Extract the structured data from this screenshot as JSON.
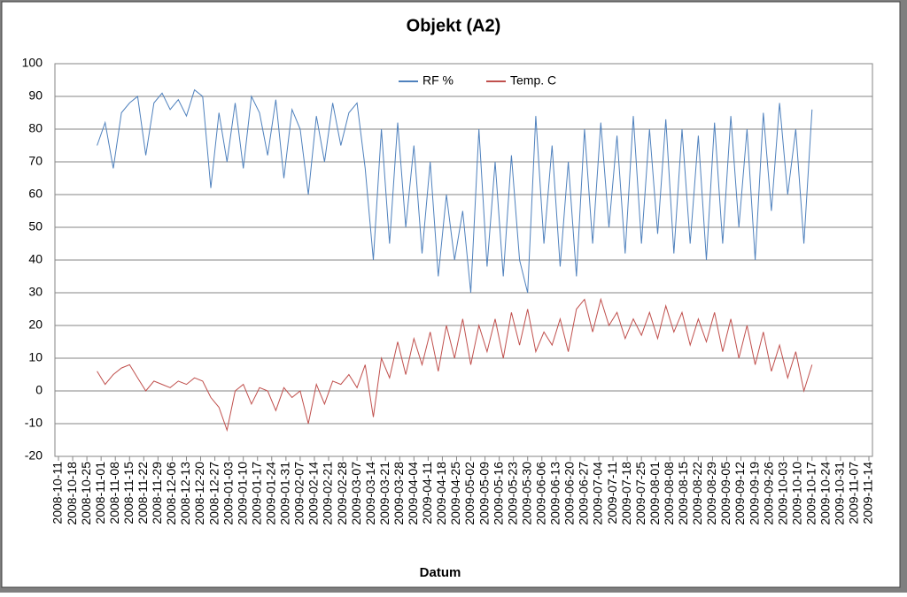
{
  "chart_data": {
    "type": "line",
    "title": "Objekt (A2)",
    "x_label": "Datum",
    "x": [
      "2008-10-30",
      "2008-11-03",
      "2008-11-07",
      "2008-11-11",
      "2008-11-15",
      "2008-11-19",
      "2008-11-23",
      "2008-11-27",
      "2008-12-01",
      "2008-12-05",
      "2008-12-09",
      "2008-12-13",
      "2008-12-17",
      "2008-12-21",
      "2008-12-25",
      "2008-12-29",
      "2009-01-02",
      "2009-01-06",
      "2009-01-10",
      "2009-01-14",
      "2009-01-18",
      "2009-01-22",
      "2009-01-26",
      "2009-01-30",
      "2009-02-03",
      "2009-02-07",
      "2009-02-11",
      "2009-02-15",
      "2009-02-19",
      "2009-02-23",
      "2009-02-27",
      "2009-03-03",
      "2009-03-07",
      "2009-03-11",
      "2009-03-15",
      "2009-03-19",
      "2009-03-23",
      "2009-03-27",
      "2009-03-31",
      "2009-04-04",
      "2009-04-08",
      "2009-04-12",
      "2009-04-16",
      "2009-04-20",
      "2009-04-24",
      "2009-04-28",
      "2009-05-02",
      "2009-05-06",
      "2009-05-10",
      "2009-05-14",
      "2009-05-18",
      "2009-05-22",
      "2009-05-26",
      "2009-05-30",
      "2009-06-03",
      "2009-06-07",
      "2009-06-11",
      "2009-06-15",
      "2009-06-19",
      "2009-06-23",
      "2009-06-27",
      "2009-07-01",
      "2009-07-05",
      "2009-07-09",
      "2009-07-13",
      "2009-07-17",
      "2009-07-21",
      "2009-07-25",
      "2009-07-29",
      "2009-08-02",
      "2009-08-06",
      "2009-08-10",
      "2009-08-14",
      "2009-08-18",
      "2009-08-22",
      "2009-08-26",
      "2009-08-30",
      "2009-09-03",
      "2009-09-07",
      "2009-09-11",
      "2009-09-15",
      "2009-09-19",
      "2009-09-23",
      "2009-09-27",
      "2009-10-01",
      "2009-10-05",
      "2009-10-09",
      "2009-10-13",
      "2009-10-17"
    ],
    "series": [
      {
        "name": "RF %",
        "color": "#4f81bd",
        "values": [
          75,
          82,
          68,
          85,
          88,
          90,
          72,
          88,
          91,
          86,
          89,
          84,
          92,
          90,
          62,
          85,
          70,
          88,
          68,
          90,
          85,
          72,
          89,
          65,
          86,
          80,
          60,
          84,
          70,
          88,
          75,
          85,
          88,
          68,
          40,
          80,
          45,
          82,
          50,
          75,
          42,
          70,
          35,
          60,
          40,
          55,
          30,
          80,
          38,
          70,
          35,
          72,
          40,
          30,
          84,
          45,
          75,
          38,
          70,
          35,
          80,
          45,
          82,
          50,
          78,
          42,
          84,
          45,
          80,
          48,
          83,
          42,
          80,
          45,
          78,
          40,
          82,
          45,
          84,
          50,
          80,
          40,
          85,
          55,
          88,
          60,
          80,
          45,
          86
        ]
      },
      {
        "name": "Temp. C",
        "color": "#c0504d",
        "values": [
          6,
          2,
          5,
          7,
          8,
          4,
          0,
          3,
          2,
          1,
          3,
          2,
          4,
          3,
          -2,
          -5,
          -12,
          0,
          2,
          -4,
          1,
          0,
          -6,
          1,
          -2,
          0,
          -10,
          2,
          -4,
          3,
          2,
          5,
          1,
          8,
          -8,
          10,
          4,
          15,
          5,
          16,
          8,
          18,
          6,
          20,
          10,
          22,
          8,
          20,
          12,
          22,
          10,
          24,
          14,
          25,
          12,
          18,
          14,
          22,
          12,
          25,
          28,
          18,
          28,
          20,
          24,
          16,
          22,
          17,
          24,
          16,
          26,
          18,
          24,
          14,
          22,
          15,
          24,
          12,
          22,
          10,
          20,
          8,
          18,
          6,
          14,
          4,
          12,
          0,
          8
        ]
      }
    ],
    "xlim": [
      "2008-10-11",
      "2009-11-14"
    ],
    "xticks": [
      "2008-10-11",
      "2008-10-18",
      "2008-10-25",
      "2008-11-01",
      "2008-11-08",
      "2008-11-15",
      "2008-11-22",
      "2008-11-29",
      "2008-12-06",
      "2008-12-13",
      "2008-12-20",
      "2008-12-27",
      "2009-01-03",
      "2009-01-10",
      "2009-01-17",
      "2009-01-24",
      "2009-01-31",
      "2009-02-07",
      "2009-02-14",
      "2009-02-21",
      "2009-02-28",
      "2009-03-07",
      "2009-03-14",
      "2009-03-21",
      "2009-03-28",
      "2009-04-04",
      "2009-04-11",
      "2009-04-18",
      "2009-04-25",
      "2009-05-02",
      "2009-05-09",
      "2009-05-16",
      "2009-05-23",
      "2009-05-30",
      "2009-06-06",
      "2009-06-13",
      "2009-06-20",
      "2009-06-27",
      "2009-07-04",
      "2009-07-11",
      "2009-07-18",
      "2009-07-25",
      "2009-08-01",
      "2009-08-08",
      "2009-08-15",
      "2009-08-22",
      "2009-08-29",
      "2009-09-05",
      "2009-09-12",
      "2009-09-19",
      "2009-09-26",
      "2009-10-03",
      "2009-10-10",
      "2009-10-17",
      "2009-10-24",
      "2009-10-31",
      "2009-11-07",
      "2009-11-14"
    ],
    "ylim": [
      -20,
      100
    ],
    "yticks": [
      -20,
      -10,
      0,
      10,
      20,
      30,
      40,
      50,
      60,
      70,
      80,
      90,
      100
    ],
    "grid": true,
    "legend": "top"
  }
}
